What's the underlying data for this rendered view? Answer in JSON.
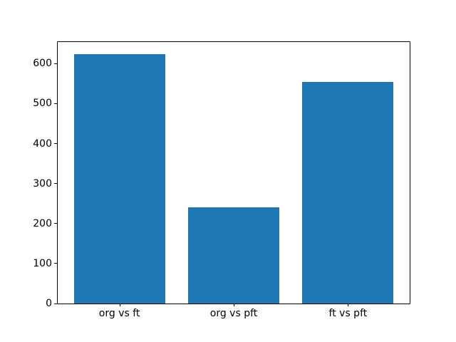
{
  "chart_data": {
    "type": "bar",
    "categories": [
      "org vs ft",
      "org vs pft",
      "ft vs pft"
    ],
    "values": [
      623,
      240,
      555
    ],
    "yticks": [
      0,
      100,
      200,
      300,
      400,
      500,
      600
    ],
    "ylim": [
      0,
      654
    ],
    "xlim": [
      -0.54,
      2.54
    ],
    "bar_width": 0.8,
    "bar_color": "#1f77b4",
    "grid": false,
    "legend_position": "none",
    "background_color": "#ffffff",
    "spine_color": "#000000"
  }
}
